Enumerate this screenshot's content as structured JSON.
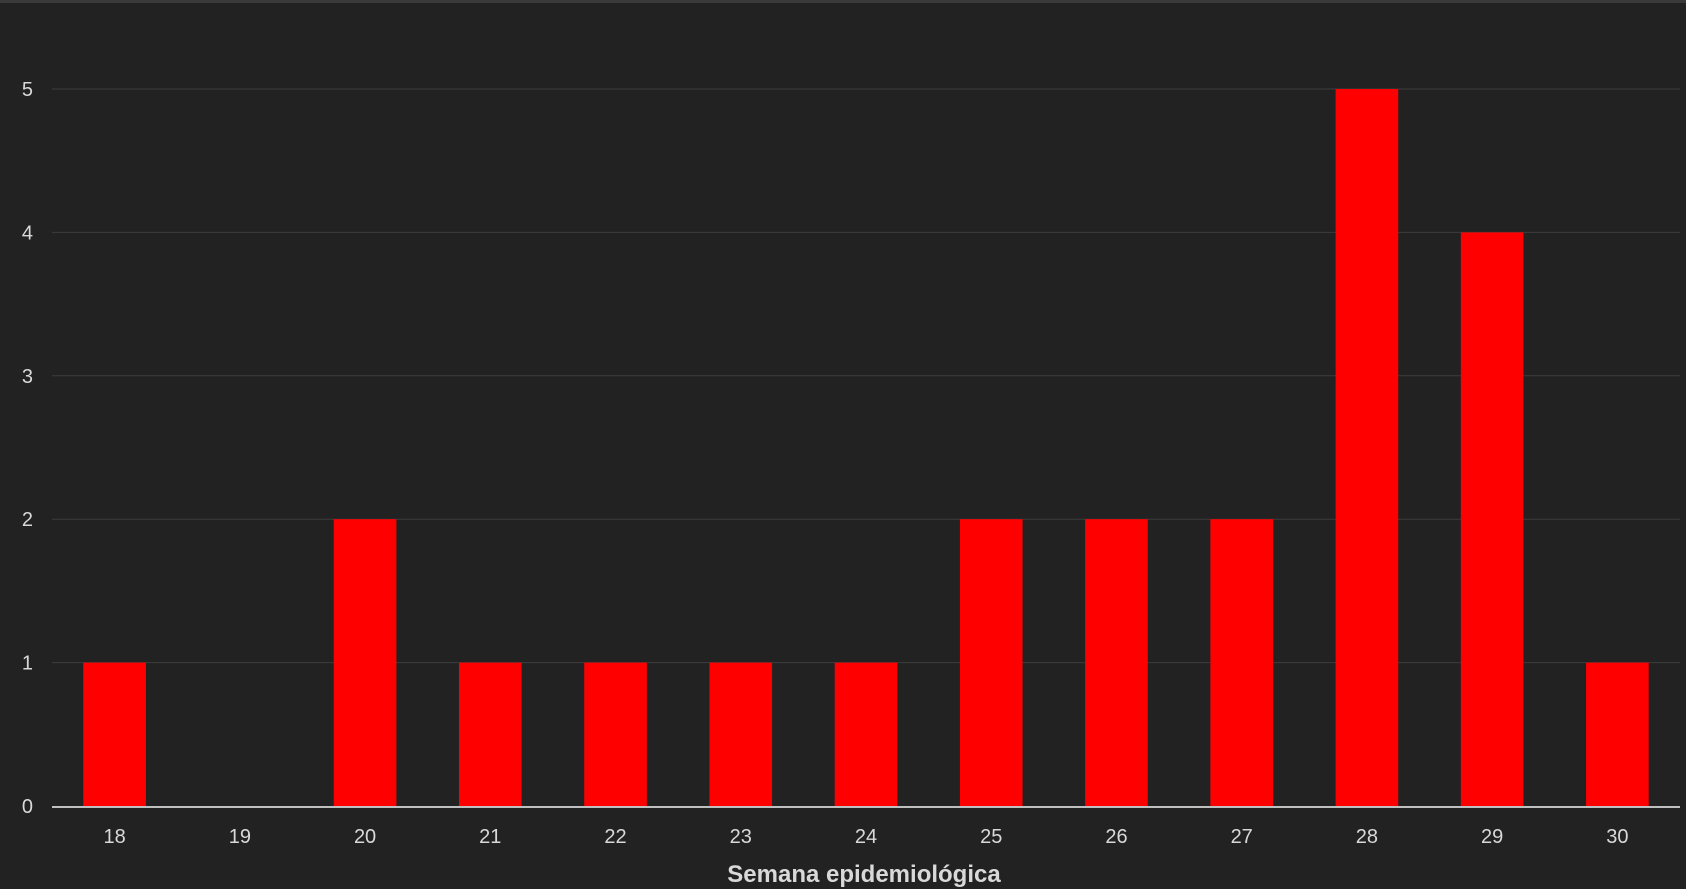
{
  "chart_data": {
    "type": "bar",
    "categories": [
      "18",
      "19",
      "20",
      "21",
      "22",
      "23",
      "24",
      "25",
      "26",
      "27",
      "28",
      "29",
      "30"
    ],
    "values": [
      1,
      0,
      2,
      1,
      1,
      1,
      1,
      2,
      2,
      2,
      5,
      4,
      1
    ],
    "title": "",
    "xlabel": "Semana epidemiológica",
    "ylabel": "",
    "ylim": [
      0,
      5
    ],
    "yticks": [
      0,
      1,
      2,
      3,
      4,
      5
    ],
    "grid": true,
    "legend": "none",
    "colors": {
      "bar": "#ff0000",
      "background": "#222222",
      "gridline": "#3d3d3d",
      "axis": "#bfbfbf",
      "text": "#d9d9d9"
    }
  }
}
